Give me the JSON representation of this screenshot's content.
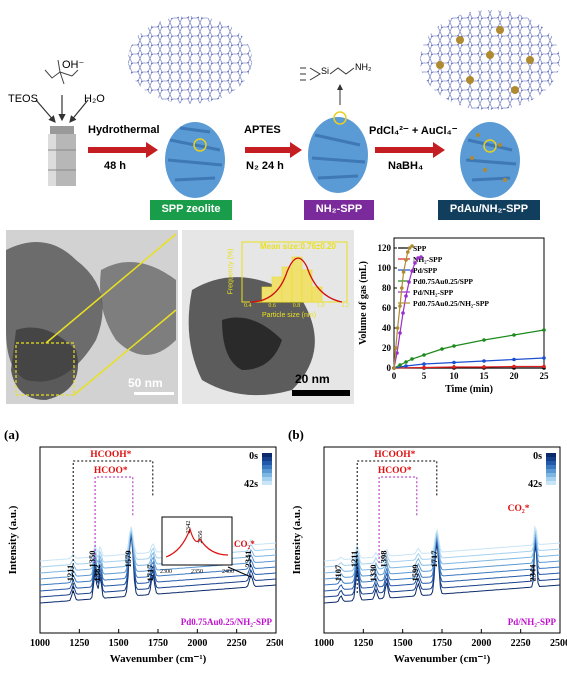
{
  "scheme": {
    "reagents": {
      "oh": "OH⁻",
      "n": "N",
      "teos": "TEOS",
      "h2o": "H₂O"
    },
    "step1": {
      "top": "Hydrothermal",
      "bottom": "48 h"
    },
    "step2": {
      "top": "APTES",
      "bottom": "N₂  24 h"
    },
    "step3": {
      "top": "PdCl₄²⁻ + AuCl₄⁻",
      "bottom": "NaBH₄"
    },
    "aptes_chain": {
      "si": "Si",
      "nh2": "NH₂"
    },
    "boxes": [
      {
        "label": "SPP zeolite",
        "color": "#1a9d4a"
      },
      {
        "label": "NH₂-SPP",
        "color": "#7a2a9a"
      },
      {
        "label": "PdAu/NH₂-SPP",
        "color": "#123e5e"
      }
    ]
  },
  "micrographs": {
    "tem_scale": "50 nm",
    "haadf_scale": "20 nm",
    "inset": {
      "title": "Mean size:0.76±0.20",
      "xlabel": "Particle size (nm)",
      "ylabel": "Frequency (%)",
      "xticks": [
        "0.4",
        "0.6",
        "0.8",
        "1.0",
        "1.2"
      ]
    }
  },
  "chart_data": [
    {
      "type": "line",
      "xlabel": "Time (min)",
      "ylabel": "Volume of gas (mL)",
      "xlim": [
        0,
        25
      ],
      "ylim": [
        0,
        130
      ],
      "xticks": [
        0,
        5,
        10,
        15,
        20,
        25
      ],
      "yticks": [
        0,
        20,
        40,
        60,
        80,
        100,
        120
      ],
      "legend_position": "top-left",
      "series": [
        {
          "name": "SPP",
          "color": "#000000",
          "x": [
            0,
            5,
            10,
            15,
            20,
            25
          ],
          "y": [
            0,
            0,
            0,
            0,
            0,
            0
          ]
        },
        {
          "name": "NH₂-SPP",
          "color": "#e02020",
          "x": [
            0,
            5,
            10,
            15,
            20,
            25
          ],
          "y": [
            0,
            0.5,
            1,
            1,
            1.5,
            1.5
          ]
        },
        {
          "name": "Pd/SPP",
          "color": "#1a4fd0",
          "x": [
            0,
            2,
            5,
            10,
            15,
            20,
            25
          ],
          "y": [
            0,
            2,
            4,
            5.5,
            7,
            8.5,
            10
          ]
        },
        {
          "name": "Pd0.75Au0.25/SPP",
          "color": "#1e8a1e",
          "x": [
            0,
            1,
            2,
            3,
            5,
            8,
            10,
            15,
            20,
            25
          ],
          "y": [
            0,
            3,
            6,
            9,
            13,
            19,
            22,
            28,
            33,
            38
          ]
        },
        {
          "name": "Pd/NH₂-SPP",
          "color": "#9a30c8",
          "x": [
            0,
            0.5,
            1,
            1.5,
            2,
            2.5,
            3,
            3.5,
            4,
            4.5
          ],
          "y": [
            0,
            15,
            35,
            55,
            72,
            86,
            97,
            105,
            110,
            111
          ]
        },
        {
          "name": "Pd0.75Au0.25/NH₂-SPP",
          "color": "#b08a30",
          "x": [
            0,
            0.3,
            0.6,
            1,
            1.3,
            1.6,
            2,
            2.3,
            2.6,
            3
          ],
          "y": [
            0,
            20,
            40,
            62,
            80,
            96,
            108,
            116,
            120,
            122
          ]
        }
      ]
    },
    {
      "panel": "(a)",
      "type": "line",
      "xlabel": "Wavenumber (cm⁻¹)",
      "ylabel": "Intensity (a.u.)",
      "xlim": [
        1000,
        2500
      ],
      "xticks": [
        1000,
        1250,
        1500,
        1750,
        2000,
        2250,
        2500
      ],
      "legend": [
        "0s",
        "42s"
      ],
      "sample": "Pd0.75Au0.25/NH₂-SPP",
      "peaks": [
        "1211",
        "1350",
        "1382",
        "1579",
        "1717",
        "2341"
      ],
      "bracket_labels": [
        "HCOOH*",
        "HCOO*"
      ],
      "inset": {
        "peaks": [
          "2342",
          "2356"
        ],
        "label": "CO₂*",
        "xticks": [
          "2300",
          "2350",
          "2400"
        ]
      }
    },
    {
      "panel": "(b)",
      "type": "line",
      "xlabel": "Wavenumber (cm⁻¹)",
      "ylabel": "Intensity (a.u.)",
      "xlim": [
        1000,
        2500
      ],
      "xticks": [
        1000,
        1250,
        1500,
        1750,
        2000,
        2250,
        2500
      ],
      "legend": [
        "0s",
        "42s"
      ],
      "sample": "Pd/NH₂-SPP",
      "peaks": [
        "1107",
        "1211",
        "1330",
        "1398",
        "1599",
        "1717",
        "2344"
      ],
      "bracket_labels": [
        "HCOOH*",
        "HCOO*",
        "CO₂*"
      ]
    }
  ]
}
